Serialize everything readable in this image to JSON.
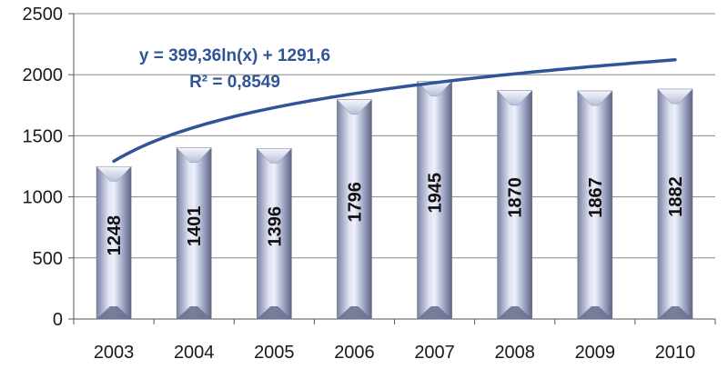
{
  "chart_data": {
    "type": "bar",
    "categories": [
      "2003",
      "2004",
      "2005",
      "2006",
      "2007",
      "2008",
      "2009",
      "2010"
    ],
    "values": [
      1248,
      1401,
      1396,
      1796,
      1945,
      1870,
      1867,
      1882
    ],
    "data_labels": [
      "1248",
      "1401",
      "1396",
      "1796",
      "1945",
      "1870",
      "1867",
      "1882"
    ],
    "y_ticks": [
      "0",
      "500",
      "1000",
      "1500",
      "2000",
      "2500"
    ],
    "ylim": [
      0,
      2500
    ],
    "grid": true,
    "trendline": {
      "type": "logarithmic",
      "a": 399.36,
      "b": 1291.6,
      "equation": "y = 399,36ln(x) + 1291,6",
      "r_squared": "R² = 0,8549",
      "color": "#2f5597"
    },
    "colors": {
      "bar_light": "#e2e6f4",
      "bar_mid": "#aab2d0",
      "bar_dark": "#5c6480",
      "grid": "#888888",
      "trendline": "#2f5597"
    }
  }
}
